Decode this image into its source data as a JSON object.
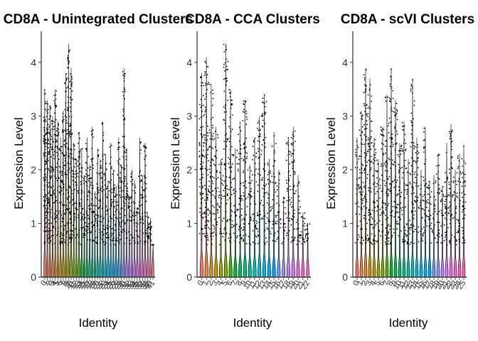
{
  "chart_data": [
    {
      "type": "violin",
      "title": "CD8A - Unintegrated Clusters",
      "xlabel": "Identity",
      "ylabel": "Expression Level",
      "ylim": [
        0,
        4.5
      ],
      "yticks": [
        0,
        1,
        2,
        3,
        4
      ],
      "n_clusters": 42,
      "groups": [
        {
          "max": 3.5,
          "spread": 0.75,
          "color": "#f8766d"
        },
        {
          "max": 3.3,
          "spread": 0.7,
          "color": "#f47a5c"
        },
        {
          "max": 3.2,
          "spread": 0.55,
          "color": "#ee7d4a"
        },
        {
          "max": 3.0,
          "spread": 0.4,
          "color": "#e7823a"
        },
        {
          "max": 3.5,
          "spread": 0.45,
          "color": "#de8a2a"
        },
        {
          "max": 2.9,
          "spread": 0.3,
          "color": "#d4911c"
        },
        {
          "max": 2.6,
          "spread": 0.3,
          "color": "#c99810"
        },
        {
          "max": 3.1,
          "spread": 0.5,
          "color": "#bd9e05"
        },
        {
          "max": 3.8,
          "spread": 0.55,
          "color": "#afa300"
        },
        {
          "max": 4.35,
          "spread": 0.65,
          "color": "#9fa800"
        },
        {
          "max": 3.9,
          "spread": 0.7,
          "color": "#8eac00"
        },
        {
          "max": 2.5,
          "spread": 0.2,
          "color": "#7bb000"
        },
        {
          "max": 2.2,
          "spread": 0.15,
          "color": "#64b300"
        },
        {
          "max": 2.7,
          "spread": 0.25,
          "color": "#45b600"
        },
        {
          "max": 2.4,
          "spread": 0.2,
          "color": "#00b81f"
        },
        {
          "max": 1.9,
          "spread": 0.12,
          "color": "#00ba45"
        },
        {
          "max": 2.6,
          "spread": 0.2,
          "color": "#00bb5e"
        },
        {
          "max": 2.1,
          "spread": 0.15,
          "color": "#00bc73"
        },
        {
          "max": 2.8,
          "spread": 0.3,
          "color": "#00bd86"
        },
        {
          "max": 1.6,
          "spread": 0.1,
          "color": "#00be98"
        },
        {
          "max": 2.4,
          "spread": 0.2,
          "color": "#00bea9"
        },
        {
          "max": 2.2,
          "spread": 0.2,
          "color": "#00beb9"
        },
        {
          "max": 2.9,
          "spread": 0.25,
          "color": "#00bdc8"
        },
        {
          "max": 2.3,
          "spread": 0.2,
          "color": "#00bbd6"
        },
        {
          "max": 1.8,
          "spread": 0.12,
          "color": "#00b8e3"
        },
        {
          "max": 2.5,
          "spread": 0.2,
          "color": "#00b4ef"
        },
        {
          "max": 2.0,
          "spread": 0.15,
          "color": "#00aff9"
        },
        {
          "max": 1.7,
          "spread": 0.1,
          "color": "#00a8ff"
        },
        {
          "max": 2.6,
          "spread": 0.2,
          "color": "#2aa1ff"
        },
        {
          "max": 2.1,
          "spread": 0.15,
          "color": "#6198ff"
        },
        {
          "max": 3.9,
          "spread": 0.45,
          "color": "#858fff"
        },
        {
          "max": 2.4,
          "spread": 0.15,
          "color": "#a086ff"
        },
        {
          "max": 1.5,
          "spread": 0.1,
          "color": "#b57eff"
        },
        {
          "max": 2.0,
          "spread": 0.12,
          "color": "#c777ff"
        },
        {
          "max": 1.8,
          "spread": 0.1,
          "color": "#d671fb"
        },
        {
          "max": 1.3,
          "spread": 0.08,
          "color": "#e26ef2"
        },
        {
          "max": 2.6,
          "spread": 0.15,
          "color": "#ec6ce6"
        },
        {
          "max": 1.9,
          "spread": 0.1,
          "color": "#f46cd8"
        },
        {
          "max": 2.5,
          "spread": 0.3,
          "color": "#fa6dc9"
        },
        {
          "max": 1.2,
          "spread": 0.08,
          "color": "#fd70b8"
        },
        {
          "max": 1.1,
          "spread": 0.08,
          "color": "#fe74a6"
        },
        {
          "max": 0.6,
          "spread": 0.05,
          "color": "#fc7893"
        }
      ]
    },
    {
      "type": "violin",
      "title": "CD8A - CCA Clusters",
      "xlabel": "Identity",
      "ylabel": "Expression Level",
      "ylim": [
        0,
        4.5
      ],
      "yticks": [
        0,
        1,
        2,
        3,
        4
      ],
      "n_clusters": 23,
      "groups": [
        {
          "max": 3.8,
          "spread": 0.8,
          "color": "#f8766d"
        },
        {
          "max": 4.1,
          "spread": 0.85,
          "color": "#ed8141"
        },
        {
          "max": 3.6,
          "spread": 0.6,
          "color": "#dc8b1f"
        },
        {
          "max": 2.8,
          "spread": 0.3,
          "color": "#c49a00"
        },
        {
          "max": 2.2,
          "spread": 0.2,
          "color": "#a6a600"
        },
        {
          "max": 4.35,
          "spread": 0.7,
          "color": "#7cae00"
        },
        {
          "max": 3.5,
          "spread": 0.5,
          "color": "#3eb600"
        },
        {
          "max": 2.4,
          "spread": 0.2,
          "color": "#00ba38"
        },
        {
          "max": 2.9,
          "spread": 0.35,
          "color": "#00bd5c"
        },
        {
          "max": 3.3,
          "spread": 0.55,
          "color": "#00bf7d"
        },
        {
          "max": 2.1,
          "spread": 0.2,
          "color": "#00c09a"
        },
        {
          "max": 2.6,
          "spread": 0.3,
          "color": "#00bfb5"
        },
        {
          "max": 3.0,
          "spread": 0.45,
          "color": "#00bccd"
        },
        {
          "max": 3.4,
          "spread": 0.5,
          "color": "#00b6e3"
        },
        {
          "max": 2.2,
          "spread": 0.25,
          "color": "#00aef6"
        },
        {
          "max": 2.7,
          "spread": 0.3,
          "color": "#00a5ff"
        },
        {
          "max": 2.0,
          "spread": 0.15,
          "color": "#619cff"
        },
        {
          "max": 1.5,
          "spread": 0.12,
          "color": "#9590ff"
        },
        {
          "max": 2.6,
          "spread": 0.3,
          "color": "#bb82ff"
        },
        {
          "max": 2.8,
          "spread": 0.45,
          "color": "#db72fb"
        },
        {
          "max": 1.9,
          "spread": 0.15,
          "color": "#f066e9"
        },
        {
          "max": 1.2,
          "spread": 0.1,
          "color": "#fc61d5"
        },
        {
          "max": 1.0,
          "spread": 0.08,
          "color": "#ff65b9"
        }
      ]
    },
    {
      "type": "violin",
      "title": "CD8A - scVI Clusters",
      "xlabel": "Identity",
      "ylabel": "Expression Level",
      "ylim": [
        0,
        4.5
      ],
      "yticks": [
        0,
        1,
        2,
        3,
        4
      ],
      "n_clusters": 26,
      "groups": [
        {
          "max": 2.6,
          "spread": 0.2,
          "color": "#f8766d"
        },
        {
          "max": 3.1,
          "spread": 0.45,
          "color": "#ef7e46"
        },
        {
          "max": 3.9,
          "spread": 0.65,
          "color": "#e28724"
        },
        {
          "max": 3.7,
          "spread": 0.55,
          "color": "#d09300"
        },
        {
          "max": 2.6,
          "spread": 0.3,
          "color": "#ba9d00"
        },
        {
          "max": 2.2,
          "spread": 0.2,
          "color": "#a1a600"
        },
        {
          "max": 2.8,
          "spread": 0.3,
          "color": "#83ad00"
        },
        {
          "max": 3.4,
          "spread": 0.6,
          "color": "#5bb300"
        },
        {
          "max": 3.9,
          "spread": 0.6,
          "color": "#00b81f"
        },
        {
          "max": 3.3,
          "spread": 0.5,
          "color": "#00bb4e"
        },
        {
          "max": 2.5,
          "spread": 0.3,
          "color": "#00bd6f"
        },
        {
          "max": 2.9,
          "spread": 0.35,
          "color": "#00bf8c"
        },
        {
          "max": 2.2,
          "spread": 0.2,
          "color": "#00c0a7"
        },
        {
          "max": 3.7,
          "spread": 0.5,
          "color": "#00bfc0"
        },
        {
          "max": 2.6,
          "spread": 0.25,
          "color": "#00bcd6"
        },
        {
          "max": 2.0,
          "spread": 0.15,
          "color": "#00b7e9"
        },
        {
          "max": 2.8,
          "spread": 0.3,
          "color": "#00b0f8"
        },
        {
          "max": 1.8,
          "spread": 0.15,
          "color": "#00a8ff"
        },
        {
          "max": 1.9,
          "spread": 0.12,
          "color": "#619cff"
        },
        {
          "max": 2.3,
          "spread": 0.2,
          "color": "#948fff"
        },
        {
          "max": 1.7,
          "spread": 0.12,
          "color": "#b983ff"
        },
        {
          "max": 2.5,
          "spread": 0.3,
          "color": "#d575fe"
        },
        {
          "max": 2.85,
          "spread": 0.5,
          "color": "#ea6af0"
        },
        {
          "max": 2.0,
          "spread": 0.15,
          "color": "#f763dd"
        },
        {
          "max": 2.3,
          "spread": 0.2,
          "color": "#fe62c6"
        },
        {
          "max": 2.45,
          "spread": 0.3,
          "color": "#ff67a8"
        }
      ]
    }
  ]
}
